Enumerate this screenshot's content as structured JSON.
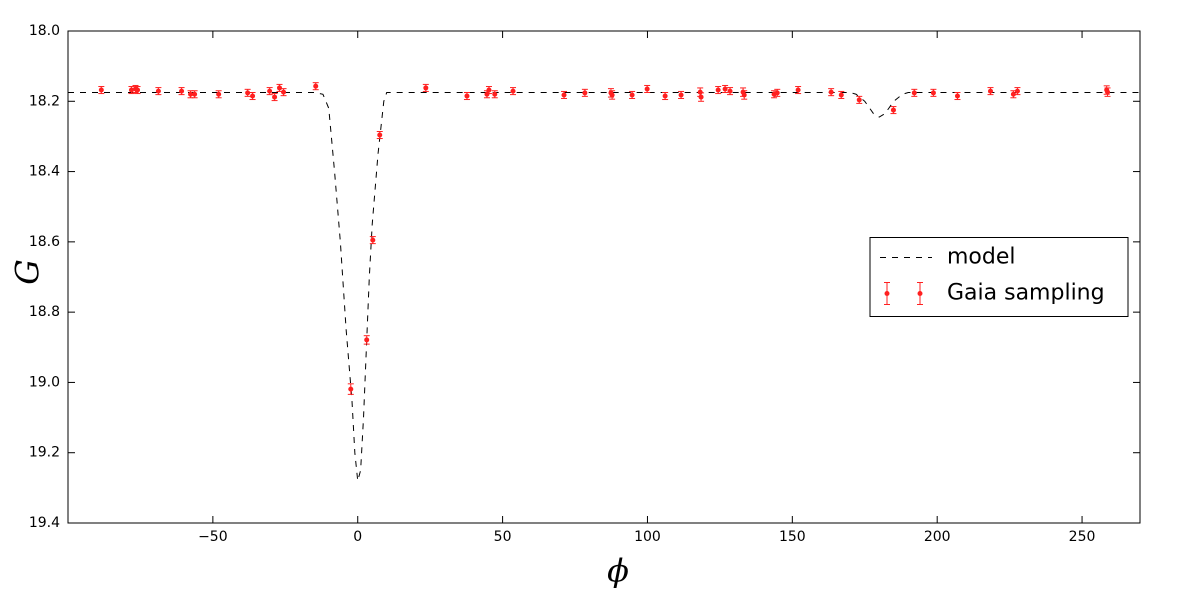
{
  "chart_data": {
    "type": "line",
    "x_label": "ϕ",
    "y_label": "G",
    "xlim": [
      -100,
      270
    ],
    "ylim": [
      19.4,
      18.0
    ],
    "xticks": [
      {
        "value": -50,
        "label": "−50"
      },
      0,
      50,
      100,
      150,
      200,
      250
    ],
    "yticks": [
      {
        "value": 18.0,
        "label": "18.0"
      },
      18.2,
      18.4,
      18.6,
      18.8,
      {
        "value": 19.0,
        "label": "19.0"
      },
      19.2,
      19.4
    ],
    "grid": false,
    "legend": "center right",
    "series": [
      {
        "name": "model",
        "type": "line",
        "color": "#000000",
        "x": [
          -100,
          -15,
          -12,
          -10,
          -8,
          -6,
          -4,
          -2,
          -1,
          0,
          1,
          2,
          3,
          4,
          5,
          7,
          9,
          10,
          170,
          172,
          175,
          178,
          180,
          182,
          185,
          188,
          190,
          270
        ],
        "values": [
          18.175,
          18.175,
          18.18,
          18.22,
          18.4,
          18.6,
          18.85,
          19.05,
          19.2,
          19.28,
          19.25,
          19.1,
          18.9,
          18.7,
          18.55,
          18.35,
          18.2,
          18.175,
          18.175,
          18.18,
          18.2,
          18.235,
          18.245,
          18.235,
          18.2,
          18.18,
          18.175,
          18.175
        ]
      },
      {
        "name": "Gaia sampling",
        "type": "errorbar",
        "color": "#ff2020",
        "x": [
          -88.5,
          -78.1,
          -76.7,
          -76.0,
          -68.8,
          -60.8,
          -57.7,
          -56.3,
          -48.0,
          -38.0,
          -36.3,
          -30.4,
          -28.7,
          -27.0,
          -25.6,
          -14.5,
          -2.4,
          3.1,
          5.2,
          7.6,
          23.5,
          37.7,
          44.6,
          45.3,
          47.3,
          53.6,
          71.2,
          78.4,
          87.4,
          87.8,
          94.7,
          99.9,
          106.1,
          111.6,
          118.2,
          118.5,
          124.4,
          126.8,
          128.5,
          133.0,
          133.4,
          143.7,
          144.8,
          152.0,
          163.4,
          166.9,
          173.1,
          184.9,
          192.1,
          198.7,
          207.0,
          218.4,
          226.3,
          227.7,
          258.5,
          258.8
        ],
        "values": [
          18.168,
          18.168,
          18.165,
          18.168,
          18.171,
          18.171,
          18.18,
          18.18,
          18.18,
          18.176,
          18.185,
          18.171,
          18.188,
          18.162,
          18.174,
          18.157,
          19.019,
          18.879,
          18.595,
          18.296,
          18.162,
          18.185,
          18.18,
          18.168,
          18.18,
          18.171,
          18.182,
          18.176,
          18.176,
          18.182,
          18.182,
          18.165,
          18.185,
          18.182,
          18.174,
          18.188,
          18.168,
          18.165,
          18.171,
          18.174,
          18.182,
          18.18,
          18.176,
          18.168,
          18.174,
          18.182,
          18.196,
          18.225,
          18.176,
          18.176,
          18.185,
          18.171,
          18.18,
          18.171,
          18.168,
          18.174
        ],
        "errors": [
          0.01,
          0.01,
          0.01,
          0.01,
          0.01,
          0.01,
          0.01,
          0.01,
          0.01,
          0.01,
          0.01,
          0.01,
          0.01,
          0.01,
          0.01,
          0.01,
          0.015,
          0.012,
          0.01,
          0.01,
          0.01,
          0.01,
          0.01,
          0.01,
          0.01,
          0.01,
          0.01,
          0.01,
          0.012,
          0.012,
          0.01,
          0.01,
          0.01,
          0.01,
          0.012,
          0.012,
          0.01,
          0.01,
          0.01,
          0.012,
          0.012,
          0.01,
          0.01,
          0.01,
          0.01,
          0.01,
          0.01,
          0.01,
          0.01,
          0.01,
          0.01,
          0.01,
          0.01,
          0.01,
          0.012,
          0.012
        ]
      }
    ]
  }
}
